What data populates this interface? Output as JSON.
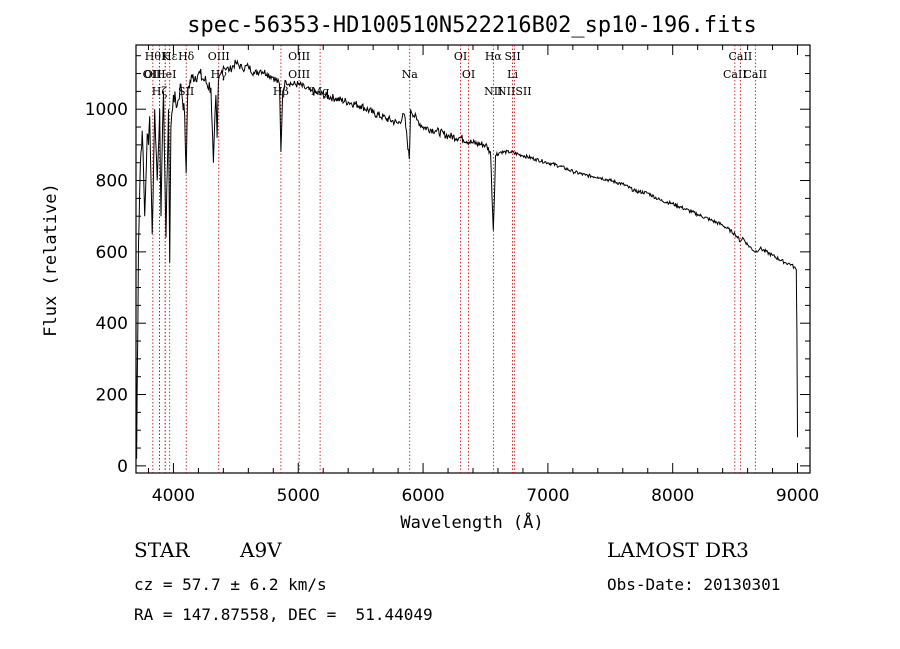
{
  "chart_data": {
    "type": "line",
    "title": "spec-56353-HD100510N522216B02_sp10-196.fits",
    "xlabel": "Wavelength (Å)",
    "ylabel": "Flux (relative)",
    "xlim": [
      3700,
      9100
    ],
    "ylim": [
      -20,
      1180
    ],
    "xticks": [
      4000,
      5000,
      6000,
      7000,
      8000,
      9000
    ],
    "yticks": [
      0,
      200,
      400,
      600,
      800,
      1000
    ],
    "series": [
      {
        "name": "flux",
        "x": [
          3700,
          3705,
          3720,
          3735,
          3750,
          3770,
          3790,
          3800,
          3810,
          3830,
          3850,
          3870,
          3890,
          3900,
          3920,
          3940,
          3960,
          3970,
          3980,
          4000,
          4030,
          4060,
          4090,
          4102,
          4115,
          4150,
          4200,
          4250,
          4300,
          4320,
          4340,
          4350,
          4360,
          4380,
          4400,
          4450,
          4500,
          4550,
          4600,
          4650,
          4700,
          4750,
          4800,
          4850,
          4861,
          4875,
          4900,
          4950,
          5000,
          5050,
          5100,
          5150,
          5200,
          5300,
          5400,
          5500,
          5600,
          5700,
          5800,
          5850,
          5890,
          5900,
          5950,
          6000,
          6100,
          6200,
          6300,
          6400,
          6500,
          6540,
          6563,
          6580,
          6620,
          6700,
          6800,
          6900,
          7000,
          7100,
          7200,
          7300,
          7400,
          7500,
          7600,
          7700,
          7800,
          7900,
          8000,
          8100,
          8200,
          8300,
          8400,
          8500,
          8542,
          8560,
          8600,
          8662,
          8700,
          8800,
          8900,
          8950,
          8990,
          8995,
          9000
        ],
        "values": [
          330,
          20,
          620,
          850,
          940,
          700,
          930,
          900,
          980,
          650,
          1000,
          800,
          1000,
          700,
          1050,
          640,
          1000,
          570,
          950,
          1040,
          1010,
          1070,
          980,
          820,
          1060,
          1090,
          1100,
          1080,
          1060,
          850,
          1040,
          920,
          1080,
          1100,
          1120,
          1110,
          1130,
          1115,
          1120,
          1100,
          1110,
          1100,
          1090,
          1070,
          880,
          1050,
          1080,
          1070,
          1070,
          1060,
          1050,
          1045,
          1040,
          1030,
          1020,
          1010,
          990,
          975,
          960,
          985,
          860,
          1000,
          970,
          950,
          940,
          925,
          920,
          905,
          900,
          880,
          660,
          870,
          880,
          880,
          870,
          860,
          850,
          840,
          825,
          815,
          810,
          800,
          790,
          770,
          765,
          745,
          735,
          720,
          705,
          690,
          675,
          650,
          630,
          640,
          620,
          600,
          610,
          590,
          570,
          565,
          550,
          380,
          80
        ]
      }
    ],
    "lines": [
      {
        "name": "CaII H/Hε",
        "wave": 3934,
        "top": "",
        "bottom": ""
      },
      {
        "name": "Hε",
        "wave": 3970,
        "top": "Hε",
        "bottom": ""
      },
      {
        "name": "K",
        "wave": 3934,
        "top": "K",
        "bottom": ""
      },
      {
        "name": "Hη",
        "wave": 3835,
        "top": "Hθ",
        "bottom": "OII"
      },
      {
        "name": "Hζ",
        "wave": 3889,
        "top": "",
        "bottom": "Hζ"
      },
      {
        "name": "HeI",
        "wave": 3889,
        "top": "",
        "bottom": "OIHeI"
      },
      {
        "name": "Hδ",
        "wave": 4102,
        "top": "Hδ",
        "bottom": "SII"
      },
      {
        "name": "OIII",
        "wave": 4363,
        "top": "OIII",
        "bottom": "Hγ"
      },
      {
        "name": "Hβ",
        "wave": 4861,
        "top": "",
        "bottom": "Hβ"
      },
      {
        "name": "OIII 5007",
        "wave": 5007,
        "top": "OIII",
        "bottom": "OIII"
      },
      {
        "name": "Mg",
        "wave": 5175,
        "top": "",
        "bottom": "Mg"
      },
      {
        "name": "Na",
        "wave": 5893,
        "top": "",
        "bottom": "Na"
      },
      {
        "name": "OI 6300",
        "wave": 6300,
        "top": "OI",
        "bottom": ""
      },
      {
        "name": "OI 6364",
        "wave": 6364,
        "top": "",
        "bottom": "OI"
      },
      {
        "name": "Hα",
        "wave": 6563,
        "top": "Hα",
        "bottom": "NII"
      },
      {
        "name": "SII",
        "wave": 6717,
        "top": "SII",
        "bottom": "Li"
      },
      {
        "name": "NIISII",
        "wave": 6731,
        "top": "",
        "bottom": "NIISII"
      },
      {
        "name": "CaII 8498",
        "wave": 8498,
        "top": "",
        "bottom": "CaII"
      },
      {
        "name": "CaII 8542",
        "wave": 8542,
        "top": "CaII",
        "bottom": ""
      },
      {
        "name": "CaII 8662",
        "wave": 8662,
        "top": "",
        "bottom": "CaII"
      }
    ]
  },
  "info": {
    "object_class": "STAR",
    "subclass": "A9V",
    "survey": "LAMOST DR3",
    "cz": "cz = 57.7 ± 6.2 km/s",
    "obs_date": "Obs-Date: 20130301",
    "radec": "RA = 147.87558, DEC =  51.44049"
  }
}
